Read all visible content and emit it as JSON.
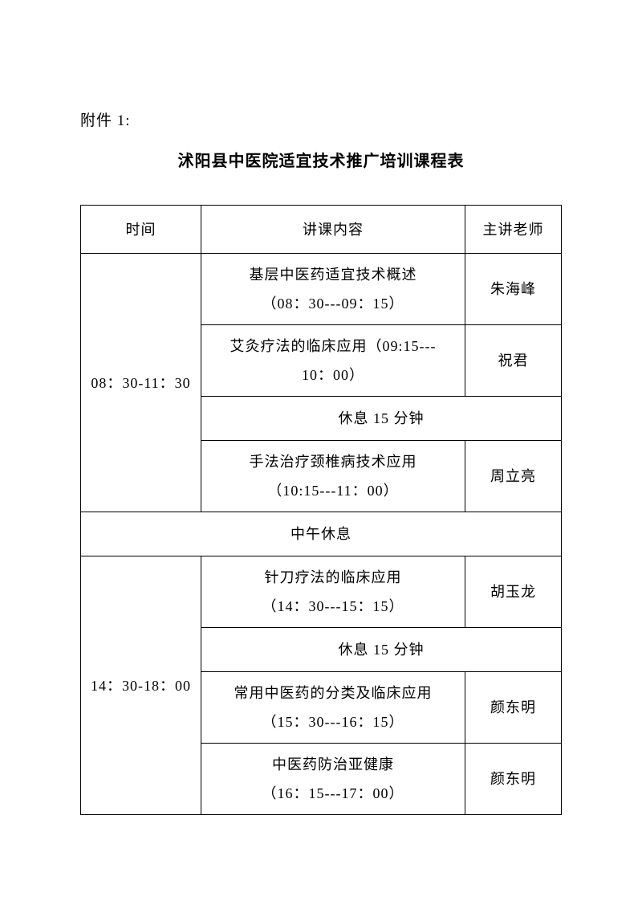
{
  "attachment_label": "附件 1:",
  "title": "沭阳县中医院适宜技术推广培训课程表",
  "columns": [
    "时间",
    "讲课内容",
    "主讲老师"
  ],
  "morning_time": "08：30-11：30",
  "morning": [
    {
      "content_line1": "基层中医药适宜技术概述",
      "content_line2": "（08：30---09：15）",
      "teacher": "朱海峰"
    },
    {
      "content_line1": "艾灸疗法的临床应用（09:15---",
      "content_line2": "10：00）",
      "teacher": "祝君"
    }
  ],
  "morning_break": "休息 15 分钟",
  "morning_last": {
    "content_line1": "手法治疗颈椎病技术应用",
    "content_line2": "（10:15---11：00）",
    "teacher": "周立亮"
  },
  "noon_break": "中午休息",
  "afternoon_time": "14：30-18：00",
  "afternoon_first": {
    "content_line1": "针刀疗法的临床应用",
    "content_line2": "（14：30---15：15）",
    "teacher": "胡玉龙"
  },
  "afternoon_break": "休息 15 分钟",
  "afternoon_rest": [
    {
      "content_line1": "常用中医药的分类及临床应用",
      "content_line2": "（15：30---16：15）",
      "teacher": "颜东明"
    },
    {
      "content_line1": "中医药防治亚健康",
      "content_line2": "（16：15---17：00）",
      "teacher": "颜东明"
    }
  ]
}
